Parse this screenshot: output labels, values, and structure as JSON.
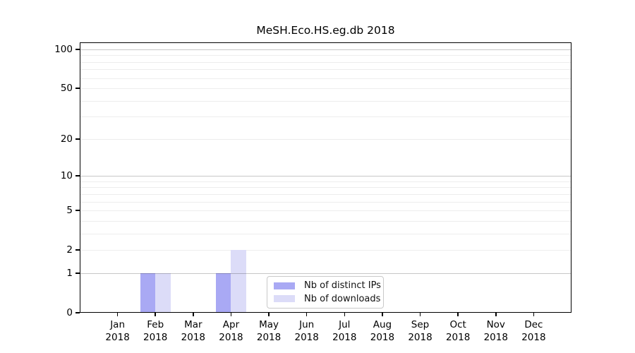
{
  "chart_data": {
    "type": "bar",
    "title": "MeSH.Eco.HS.eg.db 2018",
    "categories": [
      "Jan",
      "Feb",
      "Mar",
      "Apr",
      "May",
      "Jun",
      "Jul",
      "Aug",
      "Sep",
      "Oct",
      "Nov",
      "Dec"
    ],
    "x_tick_year": "2018",
    "series": [
      {
        "name": "Nb of distinct IPs",
        "color": "#a9a9f4",
        "values": [
          0,
          1,
          0,
          1,
          0,
          0,
          0,
          0,
          0,
          0,
          0,
          0
        ]
      },
      {
        "name": "Nb of downloads",
        "color": "#dcdcf8",
        "values": [
          0,
          1,
          0,
          2,
          0,
          0,
          0,
          0,
          0,
          0,
          0,
          0
        ]
      }
    ],
    "xlabel": "",
    "ylabel": "",
    "yscale": "log10(value+1)",
    "ylim": [
      0,
      113
    ],
    "yticks": [
      0,
      1,
      2,
      5,
      10,
      20,
      50,
      100
    ],
    "grid": {
      "major_values": [
        1,
        10,
        100
      ],
      "minor_values": [
        2,
        3,
        4,
        5,
        6,
        7,
        8,
        9,
        20,
        30,
        40,
        50,
        60,
        70,
        80,
        90
      ],
      "major_color": "rgba(0,0,0,0.22)",
      "minor_color": "#ededed"
    },
    "legend": {
      "position": "bottom-center",
      "entries": [
        "Nb of distinct IPs",
        "Nb of downloads"
      ]
    },
    "axis_color": "#000000",
    "background_color": "#ffffff"
  }
}
